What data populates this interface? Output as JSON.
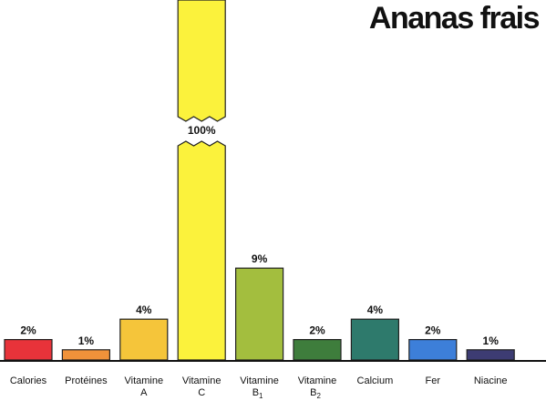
{
  "chart_data": {
    "type": "bar",
    "title": "Ananas frais",
    "xlabel": "",
    "ylabel": "",
    "ylim": [
      0,
      10
    ],
    "grid": false,
    "categories": [
      {
        "line1": "Calories",
        "line2": "",
        "sub": ""
      },
      {
        "line1": "Protéines",
        "line2": "",
        "sub": ""
      },
      {
        "line1": "Vitamine",
        "line2": "A",
        "sub": ""
      },
      {
        "line1": "Vitamine",
        "line2": "C",
        "sub": ""
      },
      {
        "line1": "Vitamine",
        "line2": "B",
        "sub": "1"
      },
      {
        "line1": "Vitamine",
        "line2": "B",
        "sub": "2"
      },
      {
        "line1": "Calcium",
        "line2": "",
        "sub": ""
      },
      {
        "line1": "Fer",
        "line2": "",
        "sub": ""
      },
      {
        "line1": "Niacine",
        "line2": "",
        "sub": ""
      }
    ],
    "values": [
      2,
      1,
      4,
      100,
      9,
      2,
      4,
      2,
      1
    ],
    "value_labels": [
      "2%",
      "1%",
      "4%",
      "100%",
      "9%",
      "2%",
      "4%",
      "2%",
      "1%"
    ],
    "broken_bar_index": 3,
    "colors": [
      "#e8333a",
      "#f0923a",
      "#f5c53a",
      "#fbf23c",
      "#a3be3e",
      "#3e7d3c",
      "#2e7a6c",
      "#3d7fd9",
      "#3d3c73"
    ]
  }
}
